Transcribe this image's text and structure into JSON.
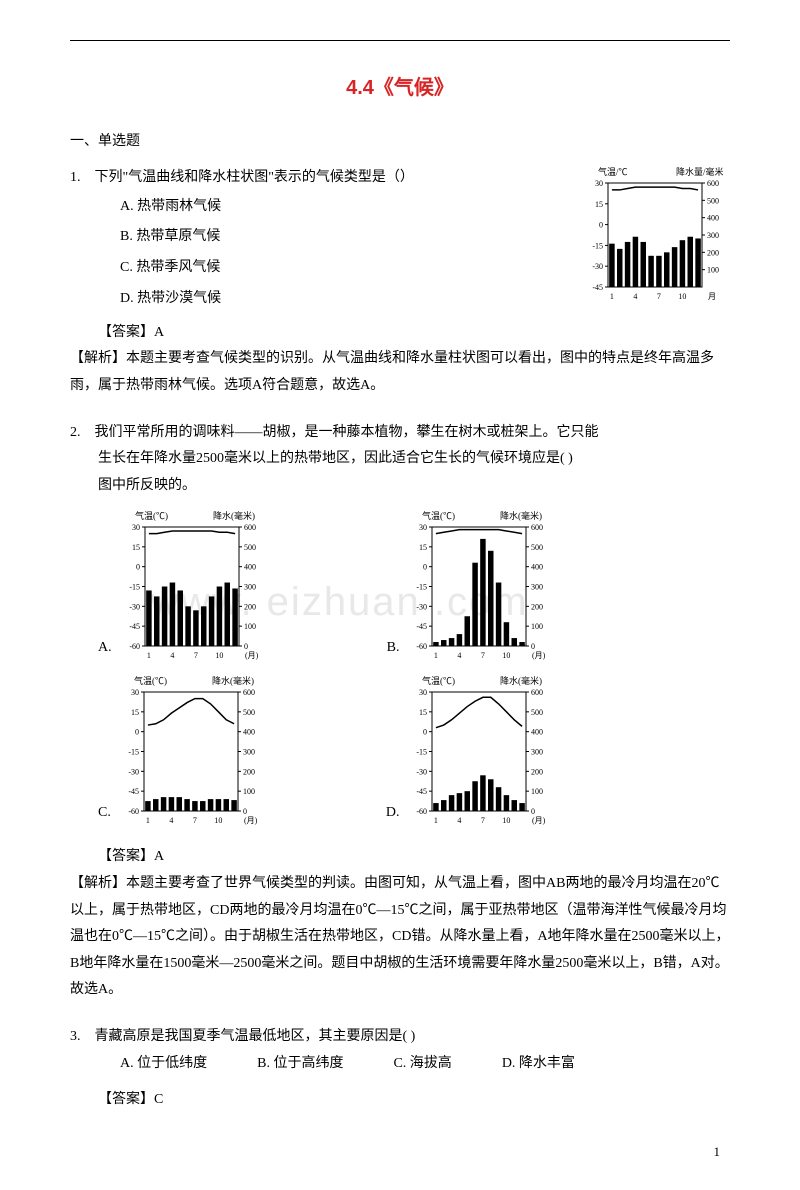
{
  "title": "4.4《气候》",
  "section": "一、单选题",
  "q1": {
    "num": "1.",
    "text": "下列\"气温曲线和降水柱状图\"表示的气候类型是（）",
    "options": {
      "a": "A. 热带雨林气候",
      "b": "B. 热带草原气候",
      "c": "C. 热带季风气候",
      "d": "D. 热带沙漠气候"
    },
    "answer": "【答案】A",
    "explain": "【解析】本题主要考查气候类型的识别。从气温曲线和降水量柱状图可以看出，图中的特点是终年高温多雨，属于热带雨林气候。选项A符合题意，故选A。",
    "chart": {
      "top_label_left": "气温/℃",
      "top_label_right": "降水量/毫米",
      "temp_ticks": [
        30,
        15,
        0,
        -15,
        -30,
        -45
      ],
      "precip_ticks": [
        600,
        500,
        400,
        300,
        200,
        100
      ],
      "x_ticks": [
        1,
        4,
        7,
        10
      ],
      "x_label": "月",
      "temp_line": [
        25,
        25,
        26,
        27,
        27,
        27,
        27,
        27,
        27,
        26,
        26,
        25
      ],
      "precip_bars": [
        250,
        220,
        260,
        290,
        260,
        180,
        180,
        200,
        230,
        270,
        290,
        280
      ],
      "bar_color": "#000000",
      "line_color": "#000000",
      "bg": "#ffffff"
    }
  },
  "q2": {
    "num": "2.",
    "text_l1": "我们平常所用的调味料——胡椒，是一种藤本植物，攀生在树木或桩架上。它只能",
    "text_l2": "生长在年降水量2500毫米以上的热带地区，因此适合它生长的气候环境应是( )",
    "text_l3": "图中所反映的。",
    "answer": "【答案】A",
    "explain": "【解析】本题主要考查了世界气候类型的判读。由图可知，从气温上看，图中AB两地的最冷月均温在20℃以上，属于热带地区，CD两地的最冷月均温在0℃—15℃之间，属于亚热带地区（温带海洋性气候最冷月均温也在0℃—15℃之间）。由于胡椒生活在热带地区，CD错。从降水量上看，A地年降水量在2500毫米以上，B地年降水量在1500毫米—2500毫米之间。题目中胡椒的生活环境需要年降水量2500毫米以上，B错，A对。故选A。",
    "charts": {
      "labels": {
        "a": "A.",
        "b": "B.",
        "c": "C.",
        "d": "D."
      },
      "common": {
        "top_left": "气温(℃)",
        "top_right": "降水(毫米)",
        "temp_ticks": [
          30,
          15,
          0,
          -15,
          -30,
          -45,
          -60
        ],
        "precip_ticks": [
          600,
          500,
          400,
          300,
          200,
          100,
          0
        ],
        "x_ticks": [
          1,
          4,
          7,
          10
        ],
        "x_label": "(月)"
      },
      "a": {
        "temp": [
          25,
          25,
          26,
          27,
          27,
          27,
          27,
          27,
          27,
          26,
          26,
          25
        ],
        "precip": [
          280,
          250,
          300,
          320,
          280,
          200,
          180,
          200,
          250,
          300,
          320,
          290
        ]
      },
      "b": {
        "temp": [
          25,
          26,
          27,
          28,
          28,
          28,
          28,
          28,
          28,
          27,
          26,
          25
        ],
        "precip": [
          20,
          30,
          40,
          60,
          150,
          420,
          540,
          480,
          320,
          120,
          40,
          20
        ]
      },
      "c": {
        "temp": [
          5,
          6,
          9,
          14,
          18,
          22,
          25,
          25,
          21,
          15,
          9,
          6
        ],
        "precip": [
          50,
          60,
          70,
          70,
          70,
          60,
          50,
          50,
          60,
          60,
          60,
          55
        ]
      },
      "d": {
        "temp": [
          3,
          5,
          9,
          14,
          19,
          23,
          26,
          26,
          21,
          15,
          9,
          4
        ],
        "precip": [
          40,
          55,
          80,
          90,
          100,
          150,
          180,
          160,
          120,
          80,
          55,
          40
        ]
      }
    }
  },
  "q3": {
    "num": "3.",
    "text": "青藏高原是我国夏季气温最低地区，其主要原因是( )",
    "options": {
      "a": "A. 位于低纬度",
      "b": "B. 位于高纬度",
      "c": "C. 海拔高",
      "d": "D. 降水丰富"
    },
    "answer": "【答案】C"
  },
  "watermark": "www.  eizhuan   .com",
  "page_num": "1"
}
